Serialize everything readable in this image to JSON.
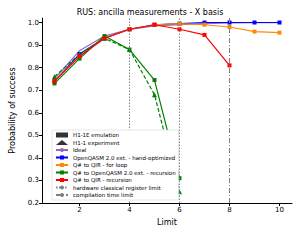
{
  "chart_data": {
    "type": "line",
    "title": "RUS: ancilla measurements - X basis",
    "x_label": "Limit",
    "y_label": "Probability of success",
    "xlim": [
      0.5,
      10.5
    ],
    "xticks": [
      2,
      4,
      6,
      8,
      10
    ],
    "ylim": [
      0.2,
      1.02
    ],
    "yticks": [
      0.2,
      0.3,
      0.4,
      0.5,
      0.6,
      0.7,
      0.8,
      0.9,
      {
        "value": 1,
        "label": "1.0"
      }
    ],
    "grid": false,
    "legend": "lower left",
    "marker_legend": [
      {
        "name": "H1-1E emulation",
        "marker": "square"
      },
      {
        "name": "H1-1 experiment",
        "marker": "triangle"
      }
    ],
    "series": [
      {
        "name": "Ideal",
        "color": "#9467bd",
        "marker": "none",
        "x": [
          1,
          2,
          3,
          4,
          5,
          6,
          7,
          8,
          9,
          10
        ],
        "values": [
          0.75,
          0.875,
          0.94,
          0.97,
          0.985,
          0.99,
          0.995,
          0.998,
          0.999,
          0.999
        ]
      },
      {
        "name": "OpenQASM 2.0 ext. - hand-optimized",
        "color": "#0000ff",
        "marker": "square",
        "x": [
          1,
          2,
          3,
          4,
          5,
          6,
          7,
          8,
          9,
          10
        ],
        "values": [
          0.74,
          0.86,
          0.93,
          0.97,
          0.99,
          0.995,
          1.0,
          1.0,
          1.0,
          1.0
        ]
      },
      {
        "name": "Q# to QIR - for loop",
        "color": "#ff8c00",
        "marker": "square",
        "x": [
          1,
          2,
          3,
          4,
          5,
          6,
          7,
          8,
          9,
          10
        ],
        "values": [
          0.74,
          0.85,
          0.93,
          0.97,
          0.99,
          0.995,
          0.99,
          0.98,
          0.96,
          0.955
        ]
      },
      {
        "name": "Q# to OpenQASM 2.0 ext. - recursion",
        "color": "#008000",
        "marker": "square",
        "x": [
          1,
          2,
          3,
          4,
          5,
          6
        ],
        "values": [
          0.73,
          0.84,
          0.94,
          0.88,
          0.745,
          0.31
        ],
        "experiment": [
          0.76,
          0.86,
          0.93,
          0.88,
          0.68,
          0.25
        ]
      },
      {
        "name": "Q# to QIR - recursion",
        "color": "#ff0000",
        "marker": "square",
        "x": [
          1,
          2,
          3,
          4,
          5,
          6,
          7,
          8
        ],
        "values": [
          0.74,
          0.85,
          0.93,
          0.97,
          0.99,
          0.97,
          0.945,
          0.81
        ]
      }
    ],
    "vlines": [
      {
        "name": "hardware classical register limit",
        "color": "#808080",
        "line_style": "dotted",
        "x": [
          4,
          6
        ]
      },
      {
        "name": "compilation time limit",
        "color": "#808080",
        "line_style": "dashdot",
        "x": [
          8
        ]
      }
    ]
  }
}
